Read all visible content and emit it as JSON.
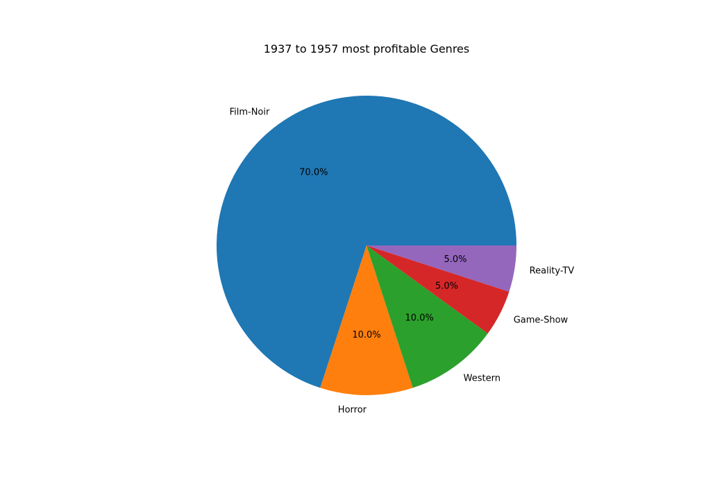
{
  "chart_data": {
    "type": "pie",
    "title": "1937 to 1957 most profitable Genres",
    "labels": [
      "Film-Noir",
      "Horror",
      "Western",
      "Game-Show",
      "Reality-TV"
    ],
    "values": [
      70.0,
      10.0,
      10.0,
      5.0,
      5.0
    ],
    "percent_labels": [
      "70.0%",
      "10.0%",
      "10.0%",
      "5.0%",
      "5.0%"
    ],
    "colors": [
      "#1f77b4",
      "#ff7f0e",
      "#2ca02c",
      "#d62728",
      "#9467bd"
    ],
    "start_angle_deg": 0,
    "direction": "counterclockwise",
    "legend": "none"
  }
}
